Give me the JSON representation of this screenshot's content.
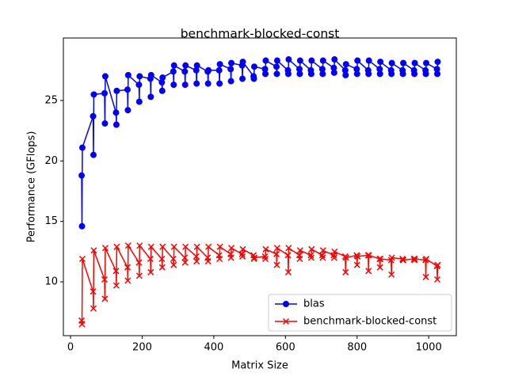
{
  "chart_data": {
    "type": "line",
    "title": "benchmark-blocked-const",
    "x_label": "Matrix Size",
    "y_label": "Performance (GFlops)",
    "x": [
      31,
      32,
      33,
      63,
      64,
      65,
      95,
      96,
      97,
      127,
      128,
      129,
      159,
      160,
      161,
      191,
      192,
      193,
      223,
      224,
      225,
      255,
      256,
      257,
      287,
      288,
      289,
      319,
      320,
      321,
      351,
      352,
      353,
      383,
      384,
      385,
      415,
      416,
      417,
      447,
      448,
      449,
      479,
      480,
      481,
      511,
      512,
      513,
      543,
      544,
      545,
      575,
      576,
      577,
      607,
      608,
      609,
      639,
      640,
      641,
      671,
      672,
      673,
      703,
      704,
      705,
      735,
      736,
      737,
      767,
      768,
      769,
      799,
      800,
      801,
      831,
      832,
      833,
      863,
      864,
      865,
      895,
      896,
      897,
      927,
      928,
      929,
      959,
      960,
      961,
      991,
      992,
      993,
      1023,
      1024,
      1025
    ],
    "series": [
      {
        "name": "blas",
        "color": "#0000ff",
        "marker": "circle",
        "values": [
          18.8,
          14.6,
          21.1,
          23.7,
          20.5,
          25.5,
          25.6,
          23.1,
          27.0,
          24.0,
          23.0,
          25.8,
          25.9,
          24.2,
          27.1,
          26.3,
          24.9,
          27.0,
          26.8,
          25.3,
          27.1,
          26.5,
          25.8,
          26.9,
          27.4,
          26.3,
          27.9,
          27.4,
          26.3,
          27.9,
          27.5,
          26.4,
          27.9,
          27.4,
          26.4,
          27.5,
          27.5,
          26.4,
          28.0,
          27.6,
          26.6,
          28.1,
          27.9,
          26.8,
          28.2,
          27.0,
          26.8,
          27.8,
          27.6,
          27.2,
          28.3,
          27.8,
          27.2,
          28.3,
          27.5,
          27.2,
          28.4,
          27.6,
          27.2,
          28.3,
          27.5,
          27.2,
          28.3,
          27.6,
          27.2,
          28.3,
          27.7,
          27.3,
          28.4,
          27.5,
          27.1,
          28.0,
          27.6,
          27.2,
          28.3,
          27.5,
          27.2,
          28.3,
          27.6,
          27.2,
          28.2,
          27.5,
          27.2,
          28.1,
          27.5,
          27.2,
          28.1,
          27.5,
          27.2,
          28.1,
          27.5,
          27.2,
          28.1,
          27.6,
          27.2,
          28.2
        ]
      },
      {
        "name": "benchmark-blocked-const",
        "color": "#ff0000",
        "marker": "x",
        "values": [
          6.8,
          6.5,
          11.9,
          9.2,
          7.8,
          12.6,
          10.2,
          8.6,
          12.8,
          10.9,
          9.7,
          12.9,
          11.2,
          10.1,
          13.0,
          11.6,
          10.5,
          13.0,
          11.9,
          10.8,
          12.9,
          11.9,
          11.2,
          12.9,
          11.9,
          11.4,
          12.9,
          12.0,
          11.6,
          12.9,
          12.1,
          11.7,
          12.9,
          12.0,
          11.7,
          12.9,
          12.2,
          11.9,
          12.9,
          12.3,
          12.0,
          12.8,
          12.3,
          12.1,
          12.7,
          12.2,
          11.9,
          12.0,
          12.1,
          11.9,
          12.7,
          12.3,
          11.4,
          12.8,
          12.2,
          10.8,
          12.8,
          12.2,
          11.9,
          12.6,
          12.2,
          12.0,
          12.7,
          12.2,
          12.0,
          12.6,
          12.2,
          12.0,
          12.5,
          12.1,
          10.8,
          12.0,
          12.2,
          11.4,
          12.1,
          12.2,
          10.9,
          12.2,
          11.9,
          11.2,
          11.9,
          11.8,
          10.6,
          12.0,
          11.9,
          11.8,
          11.8,
          11.9,
          11.8,
          11.9,
          11.8,
          10.4,
          11.9,
          11.3,
          10.2,
          11.4
        ]
      }
    ],
    "xlim": [
      -20,
      1077
    ],
    "ylim": [
      5.55,
      30.17
    ],
    "xticks": [
      0,
      200,
      400,
      600,
      800,
      1000
    ],
    "yticks": [
      10,
      15,
      20,
      25
    ],
    "legend": "lower right"
  }
}
